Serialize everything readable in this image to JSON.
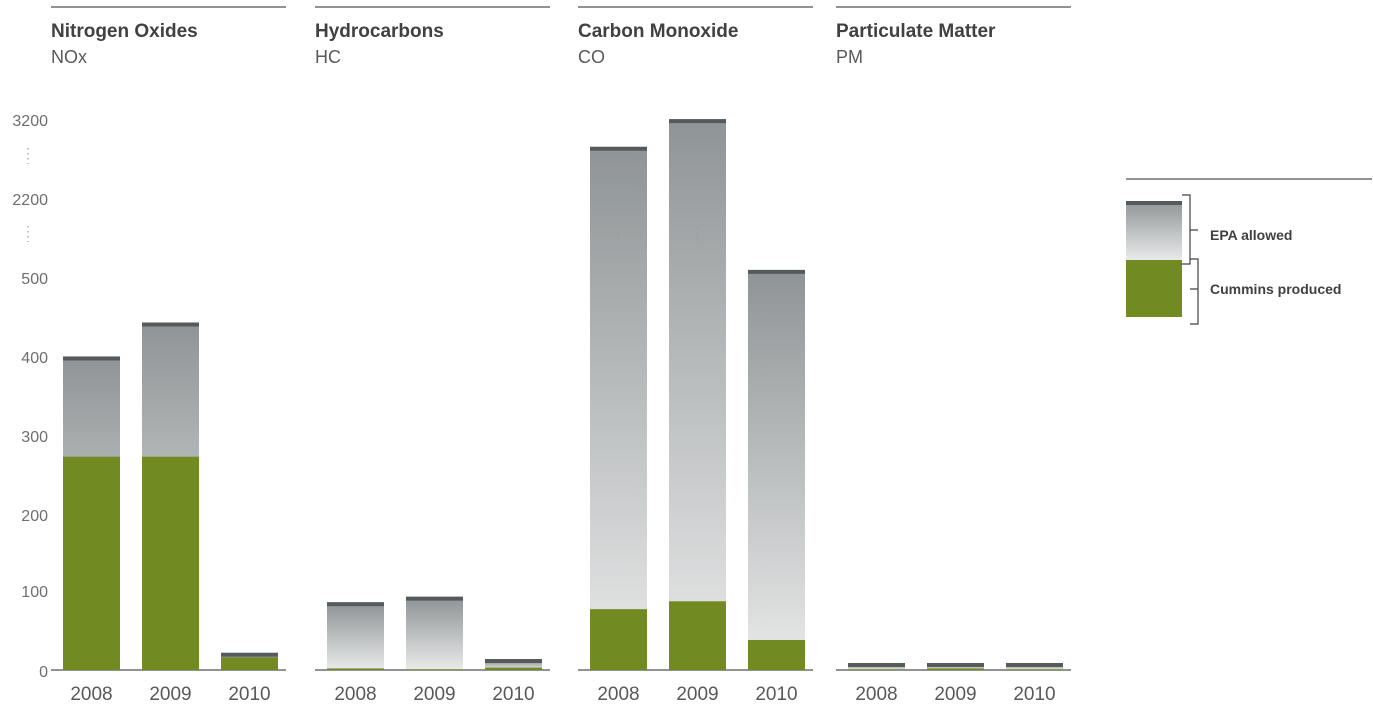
{
  "colors": {
    "cummins": "#728a22",
    "epa_top": "#8f9496",
    "epa_bottom": "#e9eaea",
    "cap": "#555a5c",
    "rule": "#6d6e71",
    "break_dots": "#9a9a9a"
  },
  "legend": {
    "epa_label": "EPA allowed",
    "cummins_label": "Cummins produced"
  },
  "chart_data": [
    {
      "type": "bar",
      "title": "Nitrogen Oxides",
      "subtitle": "NOx",
      "categories": [
        "2008",
        "2009",
        "2010"
      ],
      "series": [
        {
          "name": "EPA allowed",
          "values": [
            395,
            438,
            20
          ]
        },
        {
          "name": "Cummins produced",
          "values": [
            270,
            270,
            16
          ]
        }
      ],
      "yticks": [
        "0",
        "100",
        "200",
        "300",
        "400",
        "500",
        "2200",
        "3200"
      ],
      "axis_break": true
    },
    {
      "type": "bar",
      "title": "Hydrocarbons",
      "subtitle": "HC",
      "categories": [
        "2008",
        "2009",
        "2010"
      ],
      "series": [
        {
          "name": "EPA allowed",
          "values": [
            84,
            91,
            12
          ]
        },
        {
          "name": "Cummins produced",
          "values": [
            2,
            1,
            3
          ]
        }
      ]
    },
    {
      "type": "bar",
      "title": "Carbon Monoxide",
      "subtitle": "CO",
      "categories": [
        "2008",
        "2009",
        "2010"
      ],
      "series": [
        {
          "name": "EPA allowed",
          "values": [
            2830,
            3180,
            580
          ]
        },
        {
          "name": "Cummins produced",
          "values": [
            77,
            87,
            38
          ]
        }
      ]
    },
    {
      "type": "bar",
      "title": "Particulate Matter",
      "subtitle": "PM",
      "categories": [
        "2008",
        "2009",
        "2010"
      ],
      "series": [
        {
          "name": "EPA allowed",
          "values": [
            7,
            7,
            7
          ]
        },
        {
          "name": "Cummins produced",
          "values": [
            1,
            2,
            1
          ]
        }
      ]
    }
  ]
}
